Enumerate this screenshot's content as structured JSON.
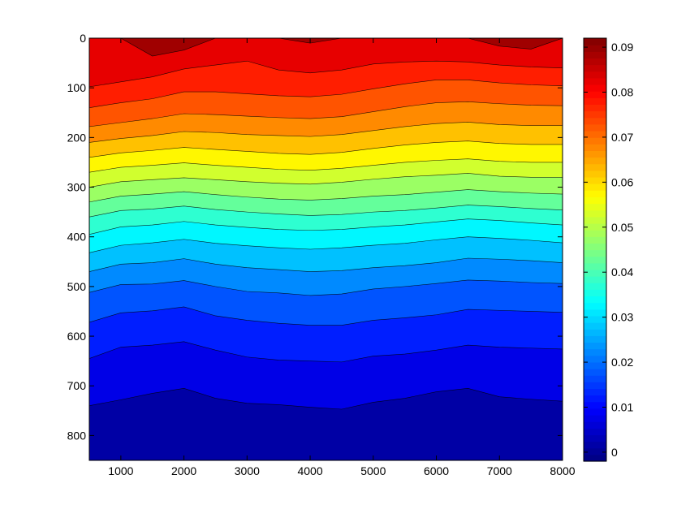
{
  "chart_data": {
    "type": "filled-contour",
    "title": "",
    "xlabel": "",
    "ylabel": "",
    "xlim": [
      500,
      8000
    ],
    "ylim": [
      0,
      850
    ],
    "y_reversed": true,
    "x_ticks": [
      1000,
      2000,
      3000,
      4000,
      5000,
      6000,
      7000,
      8000
    ],
    "y_ticks": [
      0,
      100,
      200,
      300,
      400,
      500,
      600,
      700,
      800
    ],
    "colormap": "jet",
    "clim": [
      -0.002,
      0.092
    ],
    "colorbar": {
      "placement": "right",
      "ticks": [
        0,
        0.01,
        0.02,
        0.03,
        0.04,
        0.05,
        0.06,
        0.07,
        0.08,
        0.09
      ],
      "tick_labels": [
        "0",
        "0.01",
        "0.02",
        "0.03",
        "0.04",
        "0.05",
        "0.06",
        "0.07",
        "0.08",
        "0.09"
      ]
    },
    "contour_levels": [
      0.005,
      0.01,
      0.015,
      0.02,
      0.025,
      0.03,
      0.035,
      0.04,
      0.045,
      0.05,
      0.055,
      0.06,
      0.065,
      0.07,
      0.075,
      0.08,
      0.085
    ],
    "x": [
      500,
      1000,
      1500,
      2000,
      2500,
      3000,
      3500,
      4000,
      4500,
      5000,
      5500,
      6000,
      6500,
      7000,
      7500,
      8000
    ],
    "contour_depths": [
      {
        "level": 0.005,
        "depth": [
          740,
          728,
          715,
          705,
          725,
          735,
          738,
          743,
          747,
          733,
          725,
          712,
          705,
          722,
          727,
          731
        ]
      },
      {
        "level": 0.01,
        "depth": [
          645,
          622,
          618,
          611,
          628,
          642,
          648,
          650,
          652,
          640,
          636,
          628,
          618,
          622,
          624,
          626
        ]
      },
      {
        "level": 0.015,
        "depth": [
          572,
          553,
          549,
          541,
          559,
          568,
          574,
          578,
          578,
          568,
          563,
          557,
          546,
          548,
          550,
          552
        ]
      },
      {
        "level": 0.02,
        "depth": [
          512,
          496,
          495,
          488,
          500,
          510,
          513,
          518,
          515,
          505,
          500,
          494,
          487,
          489,
          492,
          494
        ]
      },
      {
        "level": 0.025,
        "depth": [
          470,
          455,
          452,
          444,
          455,
          462,
          466,
          470,
          468,
          462,
          458,
          452,
          443,
          445,
          448,
          452
        ]
      },
      {
        "level": 0.03,
        "depth": [
          432,
          417,
          412,
          405,
          413,
          418,
          422,
          425,
          422,
          417,
          413,
          406,
          400,
          403,
          407,
          412
        ]
      },
      {
        "level": 0.035,
        "depth": [
          395,
          380,
          376,
          369,
          376,
          381,
          385,
          387,
          385,
          380,
          376,
          370,
          364,
          367,
          372,
          376
        ]
      },
      {
        "level": 0.04,
        "depth": [
          360,
          347,
          344,
          338,
          345,
          350,
          354,
          357,
          355,
          350,
          347,
          342,
          336,
          339,
          343,
          346
        ]
      },
      {
        "level": 0.045,
        "depth": [
          330,
          318,
          314,
          309,
          315,
          320,
          324,
          326,
          323,
          318,
          315,
          310,
          305,
          309,
          312,
          314
        ]
      },
      {
        "level": 0.05,
        "depth": [
          300,
          289,
          285,
          281,
          285,
          289,
          292,
          294,
          290,
          284,
          279,
          276,
          272,
          278,
          280,
          280
        ]
      },
      {
        "level": 0.055,
        "depth": [
          270,
          260,
          256,
          251,
          256,
          260,
          264,
          266,
          262,
          256,
          250,
          246,
          243,
          248,
          250,
          250
        ]
      },
      {
        "level": 0.06,
        "depth": [
          240,
          231,
          226,
          220,
          224,
          228,
          232,
          234,
          230,
          222,
          215,
          210,
          207,
          212,
          214,
          214
        ]
      },
      {
        "level": 0.065,
        "depth": [
          210,
          202,
          196,
          188,
          190,
          194,
          196,
          198,
          194,
          186,
          178,
          172,
          169,
          174,
          176,
          176
        ]
      },
      {
        "level": 0.07,
        "depth": [
          178,
          170,
          162,
          152,
          154,
          157,
          160,
          162,
          158,
          148,
          138,
          130,
          128,
          132,
          135,
          136
        ]
      },
      {
        "level": 0.075,
        "depth": [
          140,
          130,
          122,
          108,
          108,
          112,
          116,
          118,
          113,
          102,
          92,
          84,
          84,
          90,
          94,
          96
        ]
      },
      {
        "level": 0.08,
        "depth": [
          98,
          88,
          78,
          62,
          54,
          46,
          64,
          70,
          64,
          52,
          48,
          46,
          48,
          54,
          58,
          60
        ]
      },
      {
        "level": 0.085,
        "depth": [
          0,
          0,
          36,
          24,
          0,
          0,
          0,
          10,
          0,
          0,
          0,
          0,
          0,
          16,
          22,
          0
        ]
      }
    ]
  }
}
